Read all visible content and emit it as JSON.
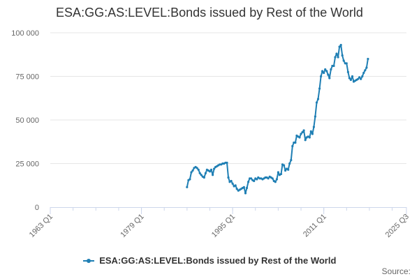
{
  "title": "ESA:GG:AS:LEVEL:Bonds issued by Rest of the World",
  "source_label": "Source:",
  "colors": {
    "series": "#1f7fb4",
    "grid": "#e6e6e6",
    "axis": "#ccd6eb"
  },
  "chart_data": {
    "type": "line",
    "title": "ESA:GG:AS:LEVEL:Bonds issued by Rest of the World",
    "xlabel": "",
    "ylabel": "",
    "x_ticks": [
      "1963 Q1",
      "1979 Q1",
      "1995 Q1",
      "2011 Q1",
      "2025 Q3"
    ],
    "y_ticks": [
      "0",
      "25 000",
      "50 000",
      "75 000",
      "100 000"
    ],
    "ylim": [
      0,
      100000
    ],
    "xlim": [
      "1963 Q1",
      "2025 Q3"
    ],
    "grid": true,
    "legend_position": "bottom",
    "series": [
      {
        "name": "ESA:GG:AS:LEVEL:Bonds issued by Rest of the World",
        "points": [
          [
            "1987 Q1",
            11500
          ],
          [
            "1987 Q2",
            15500
          ],
          [
            "1987 Q3",
            16000
          ],
          [
            "1987 Q4",
            20000
          ],
          [
            "1988 Q1",
            21000
          ],
          [
            "1988 Q2",
            22500
          ],
          [
            "1988 Q3",
            23000
          ],
          [
            "1988 Q4",
            22500
          ],
          [
            "1989 Q1",
            21500
          ],
          [
            "1989 Q2",
            19500
          ],
          [
            "1989 Q3",
            18500
          ],
          [
            "1989 Q4",
            17500
          ],
          [
            "1990 Q1",
            17000
          ],
          [
            "1990 Q2",
            19500
          ],
          [
            "1990 Q3",
            21500
          ],
          [
            "1990 Q4",
            21000
          ],
          [
            "1991 Q1",
            20500
          ],
          [
            "1991 Q2",
            21500
          ],
          [
            "1991 Q3",
            18500
          ],
          [
            "1991 Q4",
            22000
          ],
          [
            "1992 Q1",
            23000
          ],
          [
            "1992 Q2",
            23500
          ],
          [
            "1992 Q3",
            24000
          ],
          [
            "1992 Q4",
            24500
          ],
          [
            "1993 Q1",
            24500
          ],
          [
            "1993 Q2",
            25000
          ],
          [
            "1993 Q3",
            25000
          ],
          [
            "1993 Q4",
            25500
          ],
          [
            "1994 Q1",
            25500
          ],
          [
            "1994 Q2",
            17000
          ],
          [
            "1994 Q3",
            14500
          ],
          [
            "1994 Q4",
            15000
          ],
          [
            "1995 Q1",
            13500
          ],
          [
            "1995 Q2",
            12000
          ],
          [
            "1995 Q3",
            12500
          ],
          [
            "1995 Q4",
            10500
          ],
          [
            "1996 Q1",
            9500
          ],
          [
            "1996 Q2",
            10000
          ],
          [
            "1996 Q3",
            10500
          ],
          [
            "1996 Q4",
            11000
          ],
          [
            "1997 Q1",
            11500
          ],
          [
            "1997 Q2",
            8000
          ],
          [
            "1997 Q3",
            11000
          ],
          [
            "1997 Q4",
            14500
          ],
          [
            "1998 Q1",
            16500
          ],
          [
            "1998 Q2",
            16500
          ],
          [
            "1998 Q3",
            15500
          ],
          [
            "1998 Q4",
            15000
          ],
          [
            "1999 Q1",
            16500
          ],
          [
            "1999 Q2",
            16000
          ],
          [
            "1999 Q3",
            17000
          ],
          [
            "1999 Q4",
            16500
          ],
          [
            "2000 Q1",
            16500
          ],
          [
            "2000 Q2",
            16000
          ],
          [
            "2000 Q3",
            16500
          ],
          [
            "2000 Q4",
            17000
          ],
          [
            "2001 Q1",
            17000
          ],
          [
            "2001 Q2",
            16500
          ],
          [
            "2001 Q3",
            17500
          ],
          [
            "2001 Q4",
            17000
          ],
          [
            "2002 Q1",
            16500
          ],
          [
            "2002 Q2",
            15000
          ],
          [
            "2002 Q3",
            14500
          ],
          [
            "2002 Q4",
            16000
          ],
          [
            "2003 Q1",
            20000
          ],
          [
            "2003 Q2",
            18500
          ],
          [
            "2003 Q3",
            19000
          ],
          [
            "2003 Q4",
            24500
          ],
          [
            "2004 Q1",
            24000
          ],
          [
            "2004 Q2",
            21000
          ],
          [
            "2004 Q3",
            22000
          ],
          [
            "2004 Q4",
            21500
          ],
          [
            "2005 Q1",
            25000
          ],
          [
            "2005 Q2",
            27000
          ],
          [
            "2005 Q3",
            35000
          ],
          [
            "2005 Q4",
            37000
          ],
          [
            "2006 Q1",
            37000
          ],
          [
            "2006 Q2",
            41000
          ],
          [
            "2006 Q3",
            40500
          ],
          [
            "2006 Q4",
            40000
          ],
          [
            "2007 Q1",
            42000
          ],
          [
            "2007 Q2",
            43000
          ],
          [
            "2007 Q3",
            44000
          ],
          [
            "2007 Q4",
            38500
          ],
          [
            "2008 Q1",
            40000
          ],
          [
            "2008 Q2",
            40500
          ],
          [
            "2008 Q3",
            40000
          ],
          [
            "2008 Q4",
            43500
          ],
          [
            "2009 Q1",
            42000
          ],
          [
            "2009 Q2",
            46000
          ],
          [
            "2009 Q3",
            52000
          ],
          [
            "2009 Q4",
            60000
          ],
          [
            "2010 Q1",
            62000
          ],
          [
            "2010 Q2",
            68000
          ],
          [
            "2010 Q3",
            75000
          ],
          [
            "2010 Q4",
            78000
          ],
          [
            "2011 Q1",
            77000
          ],
          [
            "2011 Q2",
            79000
          ],
          [
            "2011 Q3",
            78000
          ],
          [
            "2011 Q4",
            76000
          ],
          [
            "2012 Q1",
            74000
          ],
          [
            "2012 Q2",
            79000
          ],
          [
            "2012 Q3",
            81000
          ],
          [
            "2012 Q4",
            81000
          ],
          [
            "2013 Q1",
            86000
          ],
          [
            "2013 Q2",
            88000
          ],
          [
            "2013 Q3",
            86000
          ],
          [
            "2013 Q4",
            92000
          ],
          [
            "2014 Q1",
            93000
          ],
          [
            "2014 Q2",
            87000
          ],
          [
            "2014 Q3",
            84000
          ],
          [
            "2014 Q4",
            82500
          ],
          [
            "2015 Q1",
            82500
          ],
          [
            "2015 Q2",
            77500
          ],
          [
            "2015 Q3",
            74000
          ],
          [
            "2015 Q4",
            73000
          ],
          [
            "2016 Q1",
            75000
          ],
          [
            "2016 Q2",
            72000
          ],
          [
            "2016 Q3",
            72500
          ],
          [
            "2016 Q4",
            73000
          ],
          [
            "2017 Q1",
            73500
          ],
          [
            "2017 Q2",
            74500
          ],
          [
            "2017 Q3",
            73500
          ],
          [
            "2017 Q4",
            75000
          ],
          [
            "2018 Q1",
            77000
          ],
          [
            "2018 Q2",
            78500
          ],
          [
            "2018 Q3",
            80000
          ],
          [
            "2018 Q4",
            85000
          ]
        ]
      }
    ]
  }
}
